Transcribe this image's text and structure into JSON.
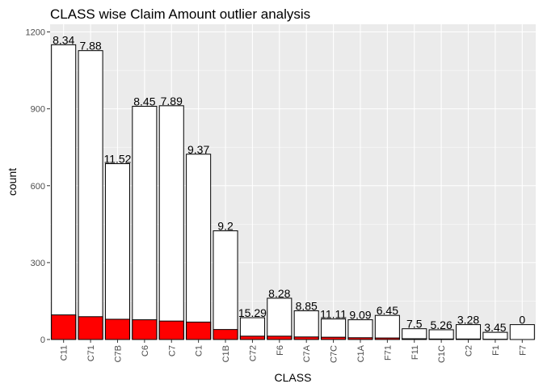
{
  "chart_data": {
    "type": "bar",
    "title": "CLASS wise Claim Amount outlier analysis",
    "xlabel": "CLASS",
    "ylabel": "count",
    "ylim": [
      0,
      1230
    ],
    "yticks": [
      0,
      300,
      600,
      900,
      1200
    ],
    "grid": true,
    "categories": [
      "C11",
      "C71",
      "C7B",
      "C6",
      "C7",
      "C1",
      "C1B",
      "C72",
      "F6",
      "C7A",
      "C7C",
      "C1A",
      "F71",
      "F11",
      "C1C",
      "C2",
      "F1",
      "F7"
    ],
    "series": [
      {
        "values": [
          1150,
          1127,
          686,
          910,
          912,
          723,
          424,
          85,
          161,
          112,
          80,
          77,
          94,
          42,
          38,
          58,
          28,
          58
        ]
      },
      {
        "values": [
          96,
          89,
          79,
          77,
          72,
          68,
          39,
          13,
          13,
          10,
          9,
          7,
          6,
          3,
          2,
          2,
          1,
          0
        ]
      }
    ],
    "data_labels": [
      "8.34",
      "7.88",
      "11.52",
      "8.45",
      "7.89",
      "9.37",
      "9.2",
      "15.29",
      "8.28",
      "8.85",
      "11.11",
      "9.09",
      "6.45",
      "7.5",
      "5.26",
      "3.28",
      "3.45",
      "0"
    ],
    "colors": {
      "total_fill": "#ffffff",
      "outlier_fill": "#ff0000",
      "bar_stroke": "#000000",
      "panel_bg": "#ebebeb",
      "grid_major": "#ffffff"
    }
  }
}
